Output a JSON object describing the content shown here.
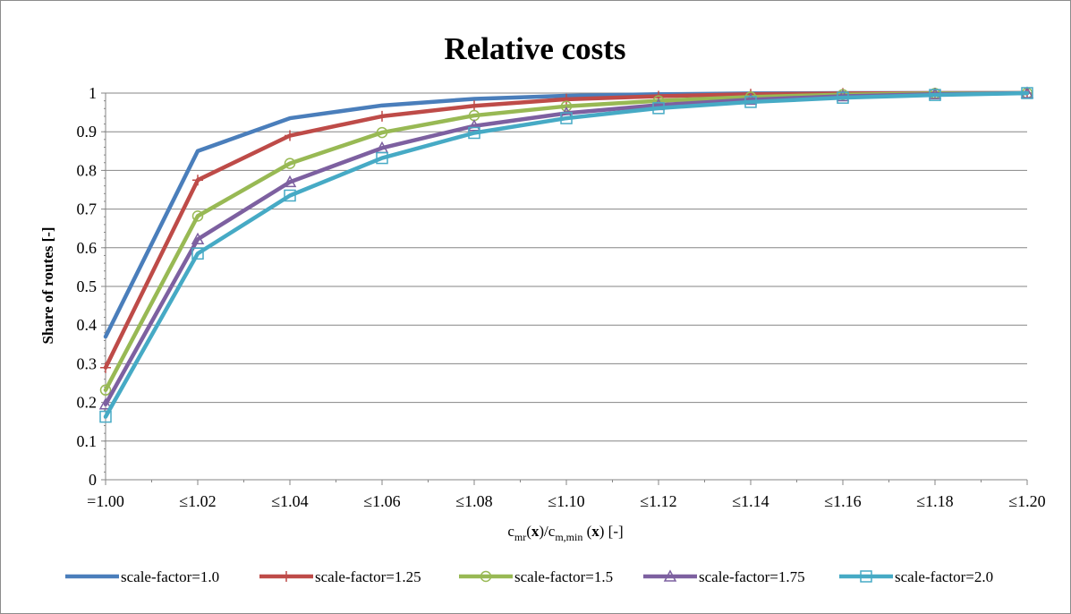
{
  "chart_data": {
    "type": "line",
    "title": "Relative costs",
    "ylabel": "Share of routes [-]",
    "xlabel": {
      "c": "c",
      "mr": "mr",
      "x1": "x",
      "slash": ")/c",
      "mmin": "m,min",
      "x2": "x",
      "tail": ") [-]",
      "open": "(",
      "open2": " ("
    },
    "categories": [
      "=1.00",
      "≤1.02",
      "≤1.04",
      "≤1.06",
      "≤1.08",
      "≤1.10",
      "≤1.12",
      "≤1.14",
      "≤1.16",
      "≤1.18",
      "≤1.20"
    ],
    "y_ticks": [
      "0",
      "0.1",
      "0.2",
      "0.3",
      "0.4",
      "0.5",
      "0.6",
      "0.7",
      "0.8",
      "0.9",
      "1"
    ],
    "ylim": [
      0,
      1
    ],
    "grid": true,
    "legend_position": "bottom",
    "series": [
      {
        "name": "scale-factor=1.0",
        "color": "#4a7ebb",
        "marker": "none",
        "values": [
          0.37,
          0.85,
          0.935,
          0.968,
          0.985,
          0.993,
          0.997,
          0.999,
          1.0,
          1.0,
          1.0
        ]
      },
      {
        "name": "scale-factor=1.25",
        "color": "#be4b48",
        "marker": "plus",
        "values": [
          0.29,
          0.775,
          0.89,
          0.94,
          0.967,
          0.984,
          0.992,
          0.997,
          0.999,
          1.0,
          1.0
        ]
      },
      {
        "name": "scale-factor=1.5",
        "color": "#98b954",
        "marker": "circle",
        "values": [
          0.232,
          0.682,
          0.818,
          0.898,
          0.942,
          0.966,
          0.98,
          0.99,
          0.996,
          0.999,
          1.0
        ]
      },
      {
        "name": "scale-factor=1.75",
        "color": "#7d60a0",
        "marker": "triangle",
        "values": [
          0.195,
          0.622,
          0.77,
          0.858,
          0.915,
          0.948,
          0.969,
          0.983,
          0.992,
          0.997,
          1.0
        ]
      },
      {
        "name": "scale-factor=2.0",
        "color": "#46aac5",
        "marker": "square",
        "values": [
          0.163,
          0.585,
          0.735,
          0.832,
          0.897,
          0.935,
          0.961,
          0.977,
          0.988,
          0.995,
          1.0
        ]
      }
    ]
  }
}
